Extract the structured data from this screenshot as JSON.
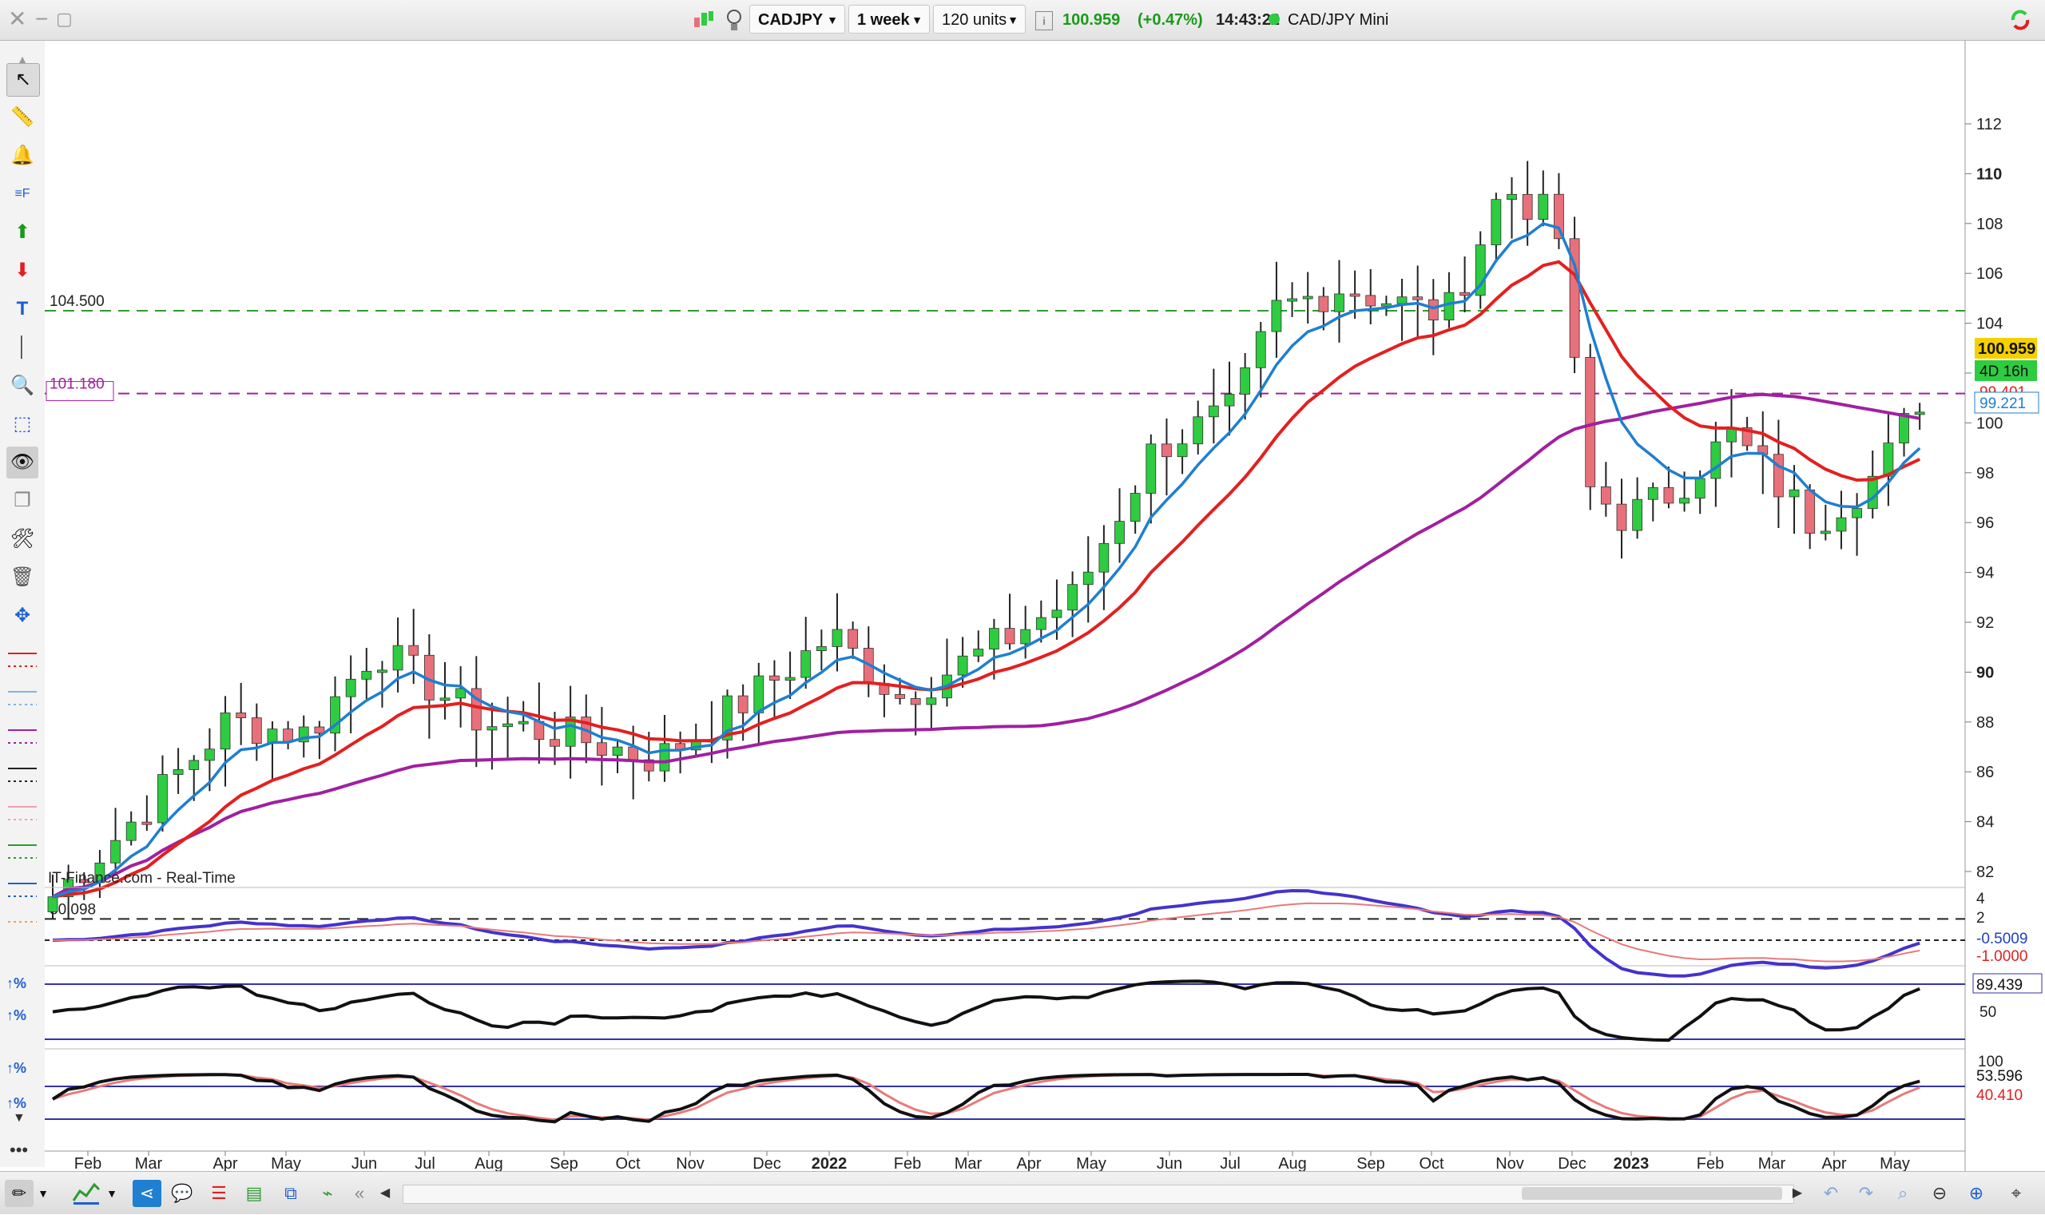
{
  "toolbar": {
    "symbol": "CADJPY",
    "timeframe": "1 week",
    "units": "120 units",
    "price": "100.959",
    "change": "(+0.47%)",
    "time": "14:43:22",
    "instrument": "CAD/JPY Mini"
  },
  "chart": {
    "source_label": "IT-Finance.com - Real-Time",
    "y_ticks": [
      "112",
      "110",
      "108",
      "106",
      "104",
      "102",
      "100",
      "98",
      "96",
      "94",
      "92",
      "90",
      "88",
      "86",
      "84",
      "82"
    ],
    "y_values": [
      112,
      110,
      108,
      106,
      104,
      102,
      100,
      98,
      96,
      94,
      92,
      90,
      88,
      86,
      84,
      82
    ],
    "x_labels": [
      "Feb",
      "Mar",
      "Apr",
      "May",
      "Jun",
      "Jul",
      "Aug",
      "Sep",
      "Oct",
      "Nov",
      "Dec",
      "2022",
      "Feb",
      "Mar",
      "Apr",
      "May",
      "Jun",
      "Jul",
      "Aug",
      "Sep",
      "Oct",
      "Nov",
      "Dec",
      "2023",
      "Feb",
      "Mar",
      "Apr",
      "May"
    ],
    "hlines": [
      {
        "label": "104.500",
        "value": 104.5,
        "color": "#2e9b2e"
      },
      {
        "label": "101.180",
        "value": 101.18,
        "color": "#a020a0"
      },
      {
        "label": "80.098",
        "value": 80.098,
        "color": "#222222"
      }
    ],
    "last_price_badge": "100.959",
    "countdown_badge": "4D 16h",
    "ma_badges": [
      "99.401",
      "99.221"
    ],
    "colors": {
      "up": "#2ecc40",
      "down": "#e8707a",
      "ma_fast": "#1f7fd0",
      "ma_mid": "#e32020",
      "ma_slow": "#a020a0"
    }
  },
  "chart_data": {
    "type": "candlestick",
    "title": "",
    "ylim": [
      80,
      113
    ],
    "candles_note": "weekly OHLC approximated",
    "moving_averages": [
      "blue",
      "red",
      "purple"
    ]
  },
  "indicators": {
    "macd": {
      "ticks": [
        "4",
        "2",
        "0"
      ],
      "badge1": "-0.5009",
      "badge2": "-1.0000"
    },
    "rsi": {
      "ticks": [
        "89.439",
        "50"
      ],
      "badge": "89.439"
    },
    "stoch": {
      "ticks": [
        "100",
        "53.596",
        "40.410"
      ],
      "badge1": "53.596",
      "badge2": "40.410"
    }
  }
}
